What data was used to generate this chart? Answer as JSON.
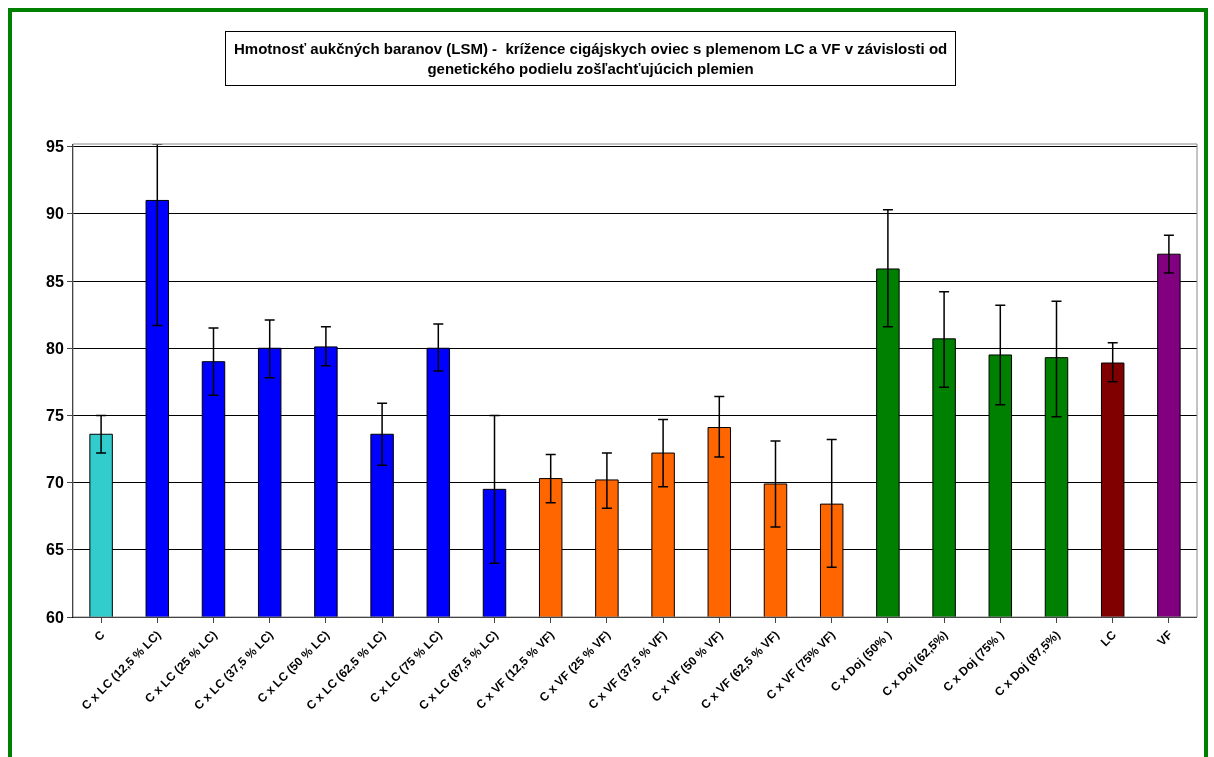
{
  "chart_data": {
    "type": "bar",
    "title": "Hmotnosť aukčných baranov (LSM) -  krížence cigájskych oviec s plemenom LC a VF v závislosti od\ngenetického podielu zošľachťujúcich plemien",
    "categories": [
      "C",
      "C x LC (12,5 % LC)",
      "C x LC (25 % LC)",
      "C x LC (37,5 % LC)",
      "C x LC (50 % LC)",
      "C x LC (62,5 % LC)",
      "C x LC (75 % LC)",
      "C x LC (87,5 % LC)",
      "C x VF (12,5 % VF)",
      "C x VF (25 % VF)",
      "C x VF (37,5 % VF)",
      "C x VF (50 % VF)",
      "C x VF (62,5 % VF)",
      "C x VF (75% VF)",
      "C x Doj (50% )",
      "C x Doj (62,5%)",
      "C x Doj (75% )",
      "C x Doj (87,5%)",
      "LC",
      "VF"
    ],
    "values": [
      73.6,
      91.0,
      79.0,
      80.0,
      80.1,
      73.6,
      80.0,
      69.5,
      70.3,
      70.2,
      72.2,
      74.1,
      69.9,
      68.4,
      85.9,
      80.7,
      79.5,
      79.3,
      78.9,
      87.0
    ],
    "errors": [
      [
        72.2,
        75.0
      ],
      [
        81.7,
        95.2
      ],
      [
        76.5,
        81.5
      ],
      [
        77.8,
        82.1
      ],
      [
        78.7,
        81.6
      ],
      [
        71.3,
        75.9
      ],
      [
        78.3,
        81.8
      ],
      [
        64.0,
        75.0
      ],
      [
        68.5,
        72.1
      ],
      [
        68.1,
        72.2
      ],
      [
        69.7,
        74.7
      ],
      [
        71.9,
        76.4
      ],
      [
        66.7,
        73.1
      ],
      [
        63.7,
        73.2
      ],
      [
        81.6,
        90.3
      ],
      [
        77.1,
        84.2
      ],
      [
        75.8,
        83.2
      ],
      [
        74.9,
        83.5
      ],
      [
        77.5,
        80.4
      ],
      [
        85.6,
        88.4
      ]
    ],
    "colors": [
      "#33cccc",
      "#0000ff",
      "#0000ff",
      "#0000ff",
      "#0000ff",
      "#0000ff",
      "#0000ff",
      "#0000ff",
      "#ff6600",
      "#ff6600",
      "#ff6600",
      "#ff6600",
      "#ff6600",
      "#ff6600",
      "#008000",
      "#008000",
      "#008000",
      "#008000",
      "#800000",
      "#800080"
    ],
    "ylim": [
      60,
      95.2
    ],
    "yticks": [
      60,
      65,
      70,
      75,
      80,
      85,
      90,
      95
    ],
    "grid": "y"
  }
}
